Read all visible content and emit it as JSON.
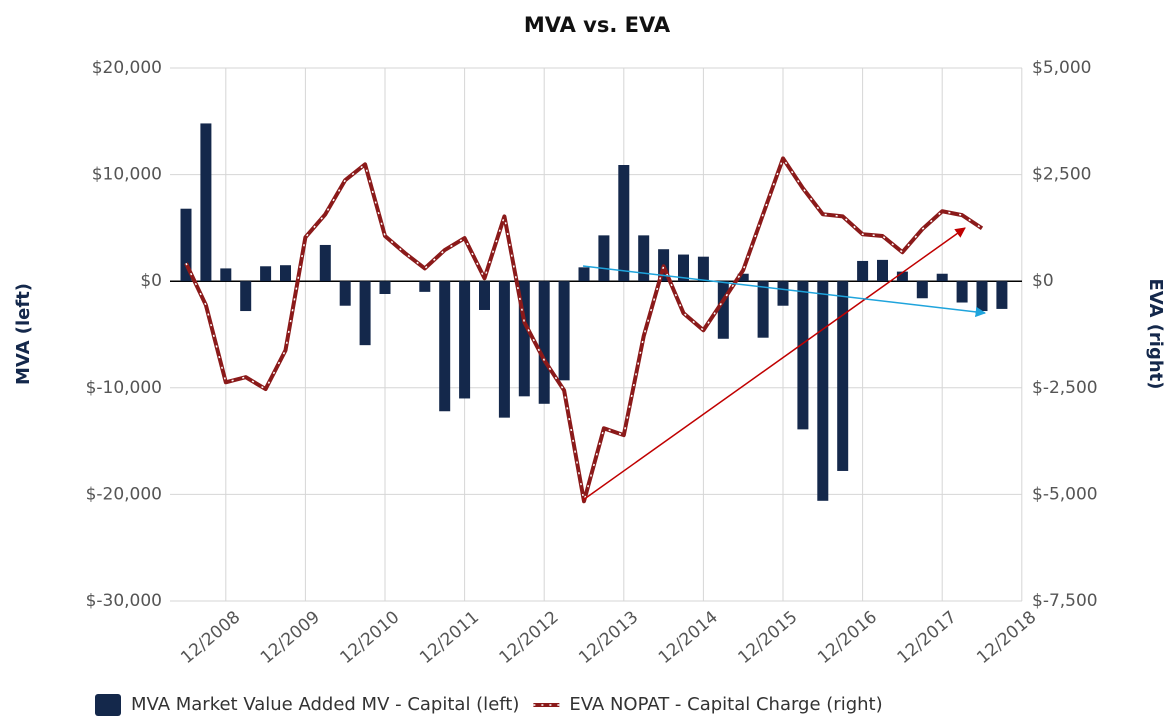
{
  "chart_data": {
    "type": "bar-line",
    "title": "MVA vs. EVA",
    "y_label": "MVA (left)",
    "y2_label": "EVA (right)",
    "categories": [
      null,
      null,
      "12/2008",
      null,
      null,
      null,
      "12/2009",
      null,
      null,
      null,
      "12/2010",
      null,
      null,
      null,
      "12/2011",
      null,
      null,
      null,
      "12/2012",
      null,
      null,
      null,
      "12/2013",
      null,
      null,
      null,
      "12/2014",
      null,
      null,
      null,
      "12/2015",
      null,
      null,
      null,
      "12/2016",
      null,
      null,
      null,
      "12/2017",
      null,
      null,
      null,
      "12/2018"
    ],
    "series": [
      {
        "name": "MVA Market Value Added MV - Capital (left)",
        "type": "bar",
        "color": "#14284b",
        "values": [
          6800,
          14800,
          1200,
          -2800,
          1400,
          1500,
          0,
          3400,
          -2300,
          -6000,
          -1200,
          0,
          -1000,
          -12200,
          -11000,
          -2700,
          -12800,
          -10800,
          -11500,
          -9300,
          1300,
          4300,
          10900,
          4300,
          3000,
          2500,
          2300,
          -5400,
          700,
          -5300,
          -2300,
          -13900,
          -20600,
          -17800,
          1900,
          2000,
          900,
          -1600,
          700,
          -2000,
          -2800,
          -2600,
          null
        ]
      },
      {
        "name": "EVA NOPAT - Capital Charge (right)",
        "type": "line",
        "axis": "y2",
        "color": "#8b1a1a",
        "values": [
          420,
          -560,
          -2370,
          -2250,
          -2530,
          -1620,
          1030,
          1570,
          2370,
          2740,
          1060,
          660,
          300,
          730,
          1010,
          70,
          1520,
          -960,
          -1850,
          -2560,
          -5160,
          -3450,
          -3610,
          -1290,
          350,
          -750,
          -1150,
          -450,
          260,
          1570,
          2880,
          2180,
          1570,
          1520,
          1100,
          1060,
          680,
          1220,
          1640,
          1550,
          1240,
          null,
          null
        ]
      }
    ],
    "ylim": [
      -30000,
      20000
    ],
    "yticks": [
      {
        "value": -30000,
        "label": "$-30,000"
      },
      {
        "value": -20000,
        "label": "$-20,000"
      },
      {
        "value": -10000,
        "label": "$-10,000"
      },
      {
        "value": 0,
        "label": "$0"
      },
      {
        "value": 10000,
        "label": "$10,000"
      },
      {
        "value": 20000,
        "label": "$20,000"
      }
    ],
    "y2lim": [
      -7500,
      5000
    ],
    "y2ticks": [
      {
        "value": -7500,
        "label": "$-7,500"
      },
      {
        "value": -5000,
        "label": "$-5,000"
      },
      {
        "value": -2500,
        "label": "$-2,500"
      },
      {
        "value": 0,
        "label": "$0"
      },
      {
        "value": 2500,
        "label": "$2,500"
      },
      {
        "value": 5000,
        "label": "$5,000"
      }
    ],
    "grid": true,
    "legend": "bottom"
  }
}
